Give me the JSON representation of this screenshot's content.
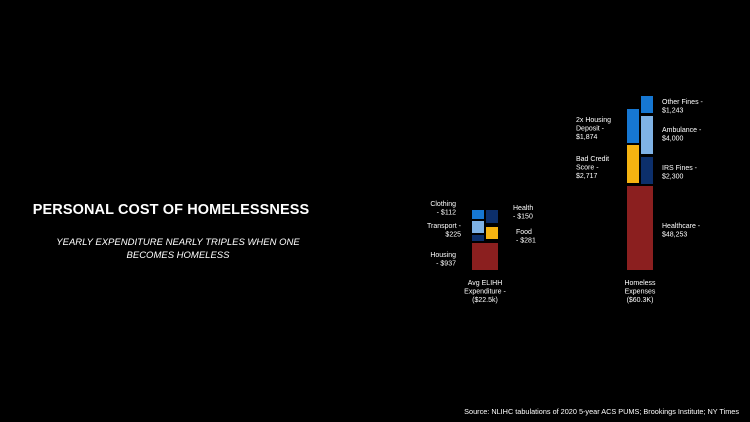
{
  "title": "PERSONAL COST OF HOMELESSNESS",
  "subtitle": "YEARLY EXPENDITURE NEARLY TRIPLES WHEN ONE BECOMES HOMELESS",
  "source": "Source: NLIHC tabulations of 2020 5-year ACS PUMS; Brookings Institute; NY Times",
  "colors": {
    "housing": "#8b1f1f",
    "healthcare": "#8b1f1f",
    "transport": "#7fb2e5",
    "ambulance": "#7fb2e5",
    "food": "#f5b311",
    "bad_credit": "#f5b311",
    "clothing": "#1677d2",
    "housing_deposit": "#1677d2",
    "other_fines": "#1677d2",
    "health": "#0c2f6b",
    "irs_fines": "#0c2f6b"
  },
  "chart_data": {
    "type": "stacked_bar",
    "title": "PERSONAL COST OF HOMELESSNESS",
    "categories": [
      "Avg ELIHH Expenditure - ($22.5k)",
      "Homeless Expenses ($60.3K)"
    ],
    "category_labels": [
      [
        "Avg ELIHH",
        "Expenditure -",
        "($22.5k)"
      ],
      [
        "Homeless",
        "Expenses",
        "($60.3K)"
      ]
    ],
    "series": [
      {
        "category": "Avg ELIHH Expenditure - ($22.5k)",
        "segments": [
          {
            "name": "Housing",
            "value": 937,
            "label": [
              "Housing",
              "- $937"
            ],
            "color_key": "housing"
          },
          {
            "name": "Transport",
            "value": 225,
            "label": [
              "Transport -",
              "$225"
            ],
            "color_key": "transport"
          },
          {
            "name": "Food",
            "value": 281,
            "label": [
              "Food",
              "- $281"
            ],
            "color_key": "food"
          },
          {
            "name": "Clothing",
            "value": 112,
            "label": [
              "Clothing",
              "- $112"
            ],
            "color_key": "clothing"
          },
          {
            "name": "Health",
            "value": 150,
            "label": [
              "Health",
              "- $150"
            ],
            "color_key": "health"
          }
        ]
      },
      {
        "category": "Homeless Expenses ($60.3K)",
        "segments": [
          {
            "name": "Healthcare",
            "value": 48253,
            "label": [
              "Healthcare -",
              "$48,253"
            ],
            "color_key": "healthcare"
          },
          {
            "name": "Bad Credit Score",
            "value": 2717,
            "label": [
              "Bad Credit",
              "Score -",
              "$2,717"
            ],
            "color_key": "bad_credit"
          },
          {
            "name": "IRS Fines",
            "value": 2300,
            "label": [
              "IRS Fines -",
              "$2,300"
            ],
            "color_key": "irs_fines"
          },
          {
            "name": "2x Housing Deposit",
            "value": 1874,
            "label": [
              "2x Housing",
              "Deposit -",
              "$1,874"
            ],
            "color_key": "housing_deposit"
          },
          {
            "name": "Ambulance",
            "value": 4000,
            "label": [
              "Ambulance -",
              "$4,000"
            ],
            "color_key": "ambulance"
          },
          {
            "name": "Other Fines",
            "value": 1243,
            "label": [
              "Other Fines -",
              "$1,243"
            ],
            "color_key": "other_fines"
          }
        ]
      }
    ]
  }
}
